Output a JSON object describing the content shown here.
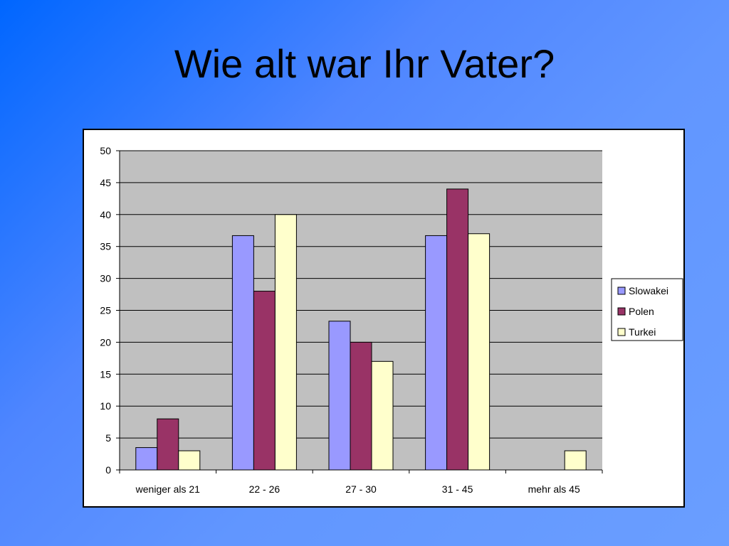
{
  "slide": {
    "title": "Wie alt war Ihr Vater?"
  },
  "colors": {
    "background_start": "#0066ff",
    "background_end": "#6a9eff",
    "plot_area": "#c0c0c0"
  },
  "chart_data": {
    "type": "bar",
    "title": "",
    "xlabel": "",
    "ylabel": "",
    "categories": [
      "weniger als 21",
      "22 - 26",
      "27 - 30",
      "31 - 45",
      "mehr als 45"
    ],
    "series": [
      {
        "name": "Slowakei",
        "color": "#9999ff",
        "values": [
          3.5,
          36.7,
          23.3,
          36.7,
          0
        ]
      },
      {
        "name": "Polen",
        "color": "#993366",
        "values": [
          8,
          28,
          20,
          44,
          0
        ]
      },
      {
        "name": "Turkei",
        "color": "#ffffcc",
        "values": [
          3,
          40,
          17,
          37,
          3
        ]
      }
    ],
    "ylim": [
      0,
      50
    ],
    "yticks": [
      0,
      5,
      10,
      15,
      20,
      25,
      30,
      35,
      40,
      45,
      50
    ],
    "grid": true,
    "legend_position": "right"
  }
}
